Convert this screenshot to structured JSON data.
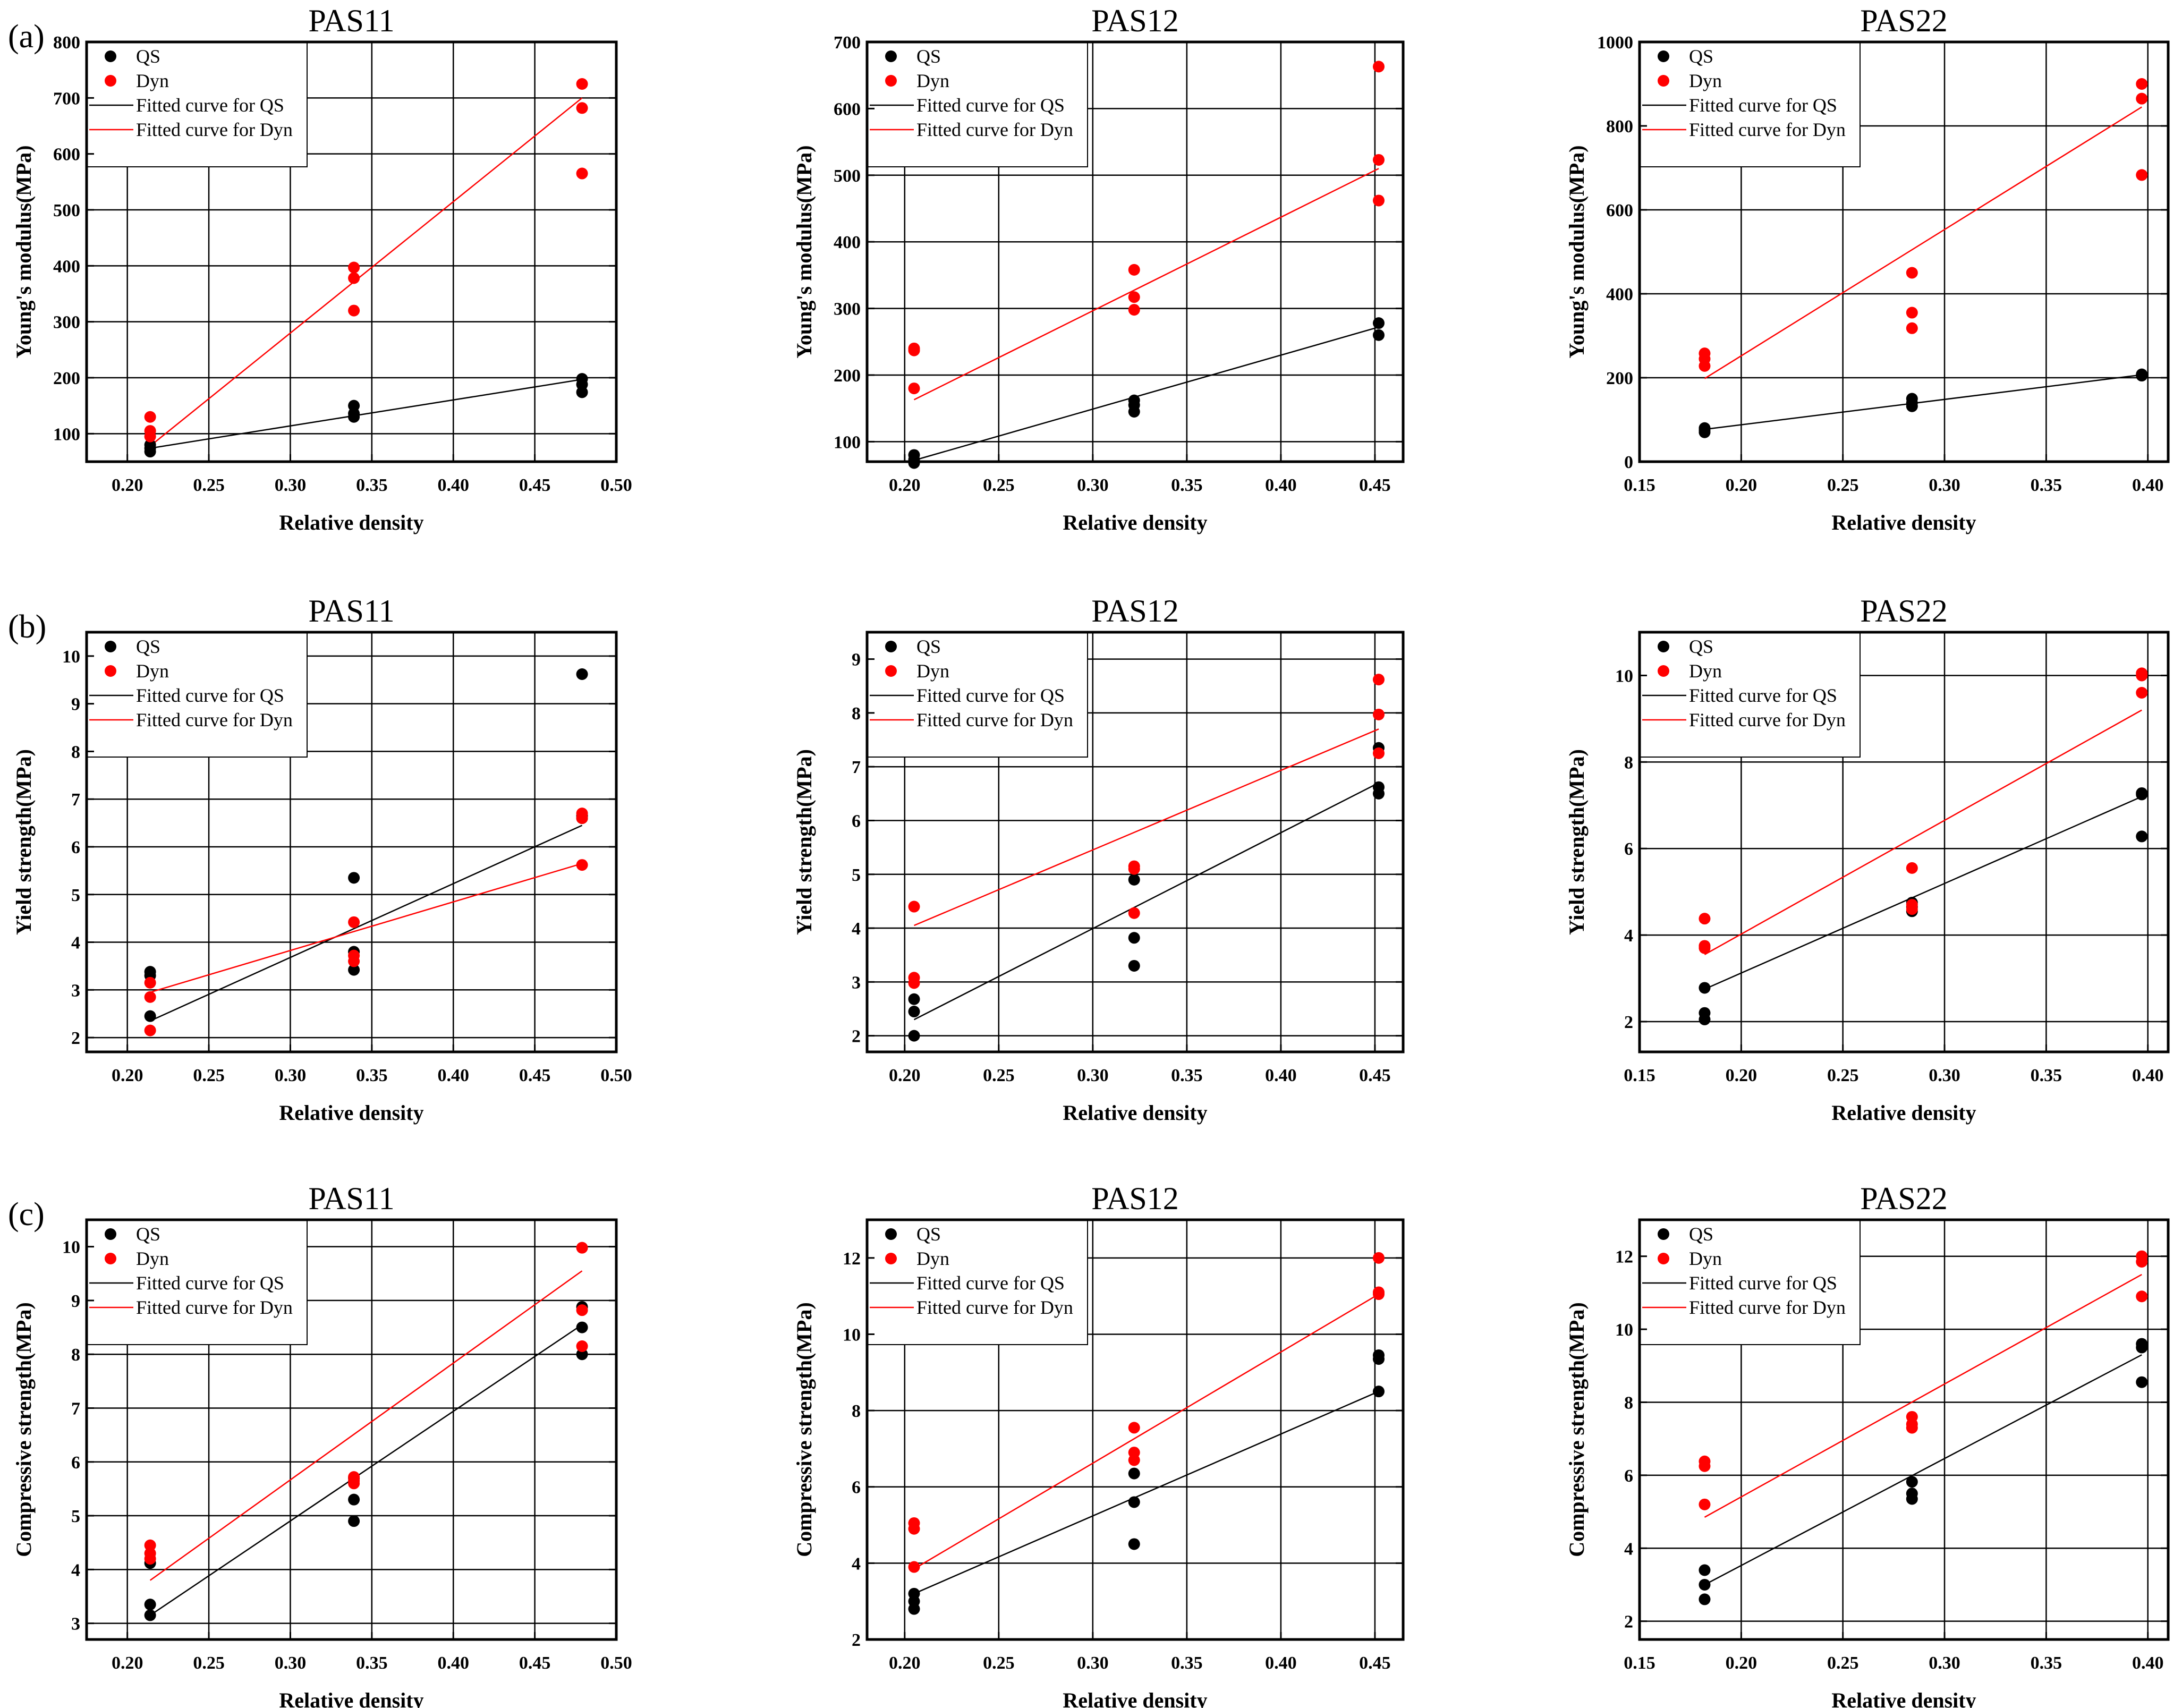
{
  "colors": {
    "qs": "#000000",
    "dyn": "#ff0000"
  },
  "legend": [
    "QS",
    "Dyn",
    "Fitted curve for QS",
    "Fitted curve for Dyn"
  ],
  "row_labels": [
    "(a)",
    "(b)",
    "(c)"
  ],
  "chart_data": [
    {
      "type": "scatter",
      "row": 0,
      "title": "PAS11",
      "xlabel": "Relative density",
      "ylabel": "Young's modulus(MPa)",
      "xlim": [
        0.175,
        0.5
      ],
      "ylim": [
        50,
        800
      ],
      "xticks": [
        0.2,
        0.25,
        0.3,
        0.35,
        0.4,
        0.45,
        0.5
      ],
      "yticks": [
        100,
        200,
        300,
        400,
        500,
        600,
        700,
        800
      ],
      "xdec": 2,
      "series": [
        {
          "name": "QS",
          "x": [
            0.214,
            0.214,
            0.214,
            0.339,
            0.339,
            0.339,
            0.479,
            0.479,
            0.479
          ],
          "y": [
            68,
            74,
            80,
            130,
            136,
            150,
            174,
            188,
            198
          ]
        },
        {
          "name": "Dyn",
          "x": [
            0.214,
            0.214,
            0.214,
            0.339,
            0.339,
            0.339,
            0.479,
            0.479,
            0.479
          ],
          "y": [
            95,
            105,
            130,
            320,
            378,
            397,
            565,
            682,
            725
          ]
        }
      ],
      "fits": [
        {
          "name": "Fitted curve for QS",
          "x": [
            0.214,
            0.479
          ],
          "y": [
            74,
            197
          ]
        },
        {
          "name": "Fitted curve for Dyn",
          "x": [
            0.214,
            0.479
          ],
          "y": [
            78,
            700
          ]
        }
      ]
    },
    {
      "type": "scatter",
      "row": 0,
      "title": "PAS12",
      "xlabel": "Relative density",
      "ylabel": "Young's modulus(MPa)",
      "xlim": [
        0.18,
        0.465
      ],
      "ylim": [
        70,
        700
      ],
      "xticks": [
        0.2,
        0.25,
        0.3,
        0.35,
        0.4,
        0.45
      ],
      "yticks": [
        100,
        200,
        300,
        400,
        500,
        600,
        700
      ],
      "xdec": 2,
      "series": [
        {
          "name": "QS",
          "x": [
            0.205,
            0.205,
            0.205,
            0.322,
            0.322,
            0.322,
            0.452,
            0.452
          ],
          "y": [
            68,
            73,
            80,
            145,
            155,
            162,
            260,
            278
          ]
        },
        {
          "name": "Dyn",
          "x": [
            0.205,
            0.205,
            0.205,
            0.322,
            0.322,
            0.322,
            0.452,
            0.452,
            0.452
          ],
          "y": [
            180,
            237,
            240,
            298,
            317,
            358,
            462,
            523,
            663
          ]
        }
      ],
      "fits": [
        {
          "name": "Fitted curve for QS",
          "x": [
            0.205,
            0.452
          ],
          "y": [
            72,
            272
          ]
        },
        {
          "name": "Fitted curve for Dyn",
          "x": [
            0.205,
            0.452
          ],
          "y": [
            163,
            510
          ]
        }
      ]
    },
    {
      "type": "scatter",
      "row": 0,
      "title": "PAS22",
      "xlabel": "Relative density",
      "ylabel": "Young's modulus(MPa)",
      "xlim": [
        0.15,
        0.41
      ],
      "ylim": [
        0,
        1000
      ],
      "xticks": [
        0.15,
        0.2,
        0.25,
        0.3,
        0.35,
        0.4
      ],
      "yticks": [
        0,
        200,
        400,
        600,
        800,
        1000
      ],
      "xdec": 2,
      "series": [
        {
          "name": "QS",
          "x": [
            0.182,
            0.182,
            0.182,
            0.284,
            0.284,
            0.284,
            0.397,
            0.397
          ],
          "y": [
            70,
            75,
            80,
            132,
            140,
            150,
            205,
            208
          ]
        },
        {
          "name": "Dyn",
          "x": [
            0.182,
            0.182,
            0.182,
            0.284,
            0.284,
            0.284,
            0.397,
            0.397,
            0.397
          ],
          "y": [
            228,
            245,
            258,
            318,
            355,
            450,
            683,
            865,
            900
          ]
        }
      ],
      "fits": [
        {
          "name": "Fitted curve for QS",
          "x": [
            0.182,
            0.397
          ],
          "y": [
            77,
            207
          ]
        },
        {
          "name": "Fitted curve for Dyn",
          "x": [
            0.182,
            0.397
          ],
          "y": [
            198,
            845
          ]
        }
      ]
    },
    {
      "type": "scatter",
      "row": 1,
      "title": "PAS11",
      "xlabel": "Relative density",
      "ylabel": "Yield strength(MPa)",
      "xlim": [
        0.175,
        0.5
      ],
      "ylim": [
        1.7,
        10.5
      ],
      "xticks": [
        0.2,
        0.25,
        0.3,
        0.35,
        0.4,
        0.45,
        0.5
      ],
      "yticks": [
        2,
        3,
        4,
        5,
        6,
        7,
        8,
        9,
        10
      ],
      "xdec": 2,
      "series": [
        {
          "name": "QS",
          "x": [
            0.214,
            0.214,
            0.214,
            0.339,
            0.339,
            0.339,
            0.479,
            0.479,
            0.479
          ],
          "y": [
            2.45,
            3.3,
            3.38,
            3.42,
            3.8,
            5.35,
            6.6,
            6.65,
            9.62
          ]
        },
        {
          "name": "Dyn",
          "x": [
            0.214,
            0.214,
            0.214,
            0.339,
            0.339,
            0.339,
            0.479,
            0.479,
            0.479
          ],
          "y": [
            2.15,
            2.85,
            3.15,
            3.6,
            3.72,
            4.42,
            5.62,
            6.6,
            6.7
          ]
        }
      ],
      "fits": [
        {
          "name": "Fitted curve for QS",
          "x": [
            0.214,
            0.479
          ],
          "y": [
            2.35,
            6.45
          ]
        },
        {
          "name": "Fitted curve for Dyn",
          "x": [
            0.214,
            0.479
          ],
          "y": [
            2.95,
            5.65
          ]
        }
      ]
    },
    {
      "type": "scatter",
      "row": 1,
      "title": "PAS12",
      "xlabel": "Relative density",
      "ylabel": "Yield strength(MPa)",
      "xlim": [
        0.18,
        0.465
      ],
      "ylim": [
        1.7,
        9.5
      ],
      "xticks": [
        0.2,
        0.25,
        0.3,
        0.35,
        0.4,
        0.45
      ],
      "yticks": [
        2,
        3,
        4,
        5,
        6,
        7,
        8,
        9
      ],
      "xdec": 2,
      "series": [
        {
          "name": "QS",
          "x": [
            0.205,
            0.205,
            0.205,
            0.322,
            0.322,
            0.322,
            0.452,
            0.452,
            0.452
          ],
          "y": [
            2.0,
            2.45,
            2.68,
            3.3,
            3.82,
            4.9,
            6.5,
            6.62,
            7.35
          ]
        },
        {
          "name": "Dyn",
          "x": [
            0.205,
            0.205,
            0.205,
            0.322,
            0.322,
            0.322,
            0.452,
            0.452,
            0.452
          ],
          "y": [
            2.98,
            3.08,
            4.4,
            4.28,
            5.1,
            5.15,
            7.25,
            7.97,
            8.62
          ]
        }
      ],
      "fits": [
        {
          "name": "Fitted curve for QS",
          "x": [
            0.205,
            0.452
          ],
          "y": [
            2.3,
            6.7
          ]
        },
        {
          "name": "Fitted curve for Dyn",
          "x": [
            0.205,
            0.452
          ],
          "y": [
            4.05,
            7.7
          ]
        }
      ]
    },
    {
      "type": "scatter",
      "row": 1,
      "title": "PAS22",
      "xlabel": "Relative density",
      "ylabel": "Yield strength(MPa)",
      "xlim": [
        0.15,
        0.41
      ],
      "ylim": [
        1.3,
        11
      ],
      "xticks": [
        0.15,
        0.2,
        0.25,
        0.3,
        0.35,
        0.4
      ],
      "yticks": [
        2,
        4,
        6,
        8,
        10
      ],
      "xdec": 2,
      "series": [
        {
          "name": "QS",
          "x": [
            0.182,
            0.182,
            0.182,
            0.284,
            0.284,
            0.284,
            0.397,
            0.397,
            0.397
          ],
          "y": [
            2.05,
            2.2,
            2.78,
            4.55,
            4.65,
            4.75,
            6.28,
            7.25,
            7.28
          ]
        },
        {
          "name": "Dyn",
          "x": [
            0.182,
            0.182,
            0.182,
            0.284,
            0.284,
            0.284,
            0.397,
            0.397,
            0.397
          ],
          "y": [
            3.7,
            3.75,
            4.38,
            4.6,
            4.7,
            5.55,
            9.6,
            10.0,
            10.05
          ]
        }
      ],
      "fits": [
        {
          "name": "Fitted curve for QS",
          "x": [
            0.182,
            0.397
          ],
          "y": [
            2.75,
            7.2
          ]
        },
        {
          "name": "Fitted curve for Dyn",
          "x": [
            0.182,
            0.397
          ],
          "y": [
            3.55,
            9.2
          ]
        }
      ]
    },
    {
      "type": "scatter",
      "row": 2,
      "title": "PAS11",
      "xlabel": "Relative density",
      "ylabel": "Compressive strength(MPa)",
      "xlim": [
        0.175,
        0.5
      ],
      "ylim": [
        2.7,
        10.5
      ],
      "xticks": [
        0.2,
        0.25,
        0.3,
        0.35,
        0.4,
        0.45,
        0.5
      ],
      "yticks": [
        3,
        4,
        5,
        6,
        7,
        8,
        9,
        10
      ],
      "xdec": 2,
      "series": [
        {
          "name": "QS",
          "x": [
            0.214,
            0.214,
            0.214,
            0.339,
            0.339,
            0.339,
            0.479,
            0.479,
            0.479
          ],
          "y": [
            3.15,
            3.35,
            4.12,
            4.9,
            5.3,
            5.7,
            8.0,
            8.5,
            8.88
          ]
        },
        {
          "name": "Dyn",
          "x": [
            0.214,
            0.214,
            0.214,
            0.339,
            0.339,
            0.339,
            0.479,
            0.479,
            0.479
          ],
          "y": [
            4.2,
            4.3,
            4.45,
            5.6,
            5.65,
            5.72,
            8.15,
            8.82,
            9.98
          ]
        }
      ],
      "fits": [
        {
          "name": "Fitted curve for QS",
          "x": [
            0.214,
            0.479
          ],
          "y": [
            3.15,
            8.55
          ]
        },
        {
          "name": "Fitted curve for Dyn",
          "x": [
            0.214,
            0.479
          ],
          "y": [
            3.8,
            9.55
          ]
        }
      ]
    },
    {
      "type": "scatter",
      "row": 2,
      "title": "PAS12",
      "xlabel": "Relative density",
      "ylabel": "Compressive strength(MPa)",
      "xlim": [
        0.18,
        0.465
      ],
      "ylim": [
        2,
        13
      ],
      "xticks": [
        0.2,
        0.25,
        0.3,
        0.35,
        0.4,
        0.45
      ],
      "yticks": [
        2,
        4,
        6,
        8,
        10,
        12
      ],
      "xdec": 2,
      "series": [
        {
          "name": "QS",
          "x": [
            0.205,
            0.205,
            0.205,
            0.322,
            0.322,
            0.322,
            0.452,
            0.452,
            0.452
          ],
          "y": [
            2.8,
            3.0,
            3.2,
            4.5,
            5.6,
            6.35,
            8.5,
            9.35,
            9.45
          ]
        },
        {
          "name": "Dyn",
          "x": [
            0.205,
            0.205,
            0.205,
            0.322,
            0.322,
            0.322,
            0.452,
            0.452,
            0.452
          ],
          "y": [
            3.9,
            4.9,
            5.05,
            6.7,
            6.9,
            7.55,
            11.05,
            11.1,
            12.0
          ]
        }
      ],
      "fits": [
        {
          "name": "Fitted curve for QS",
          "x": [
            0.205,
            0.452
          ],
          "y": [
            3.2,
            8.5
          ]
        },
        {
          "name": "Fitted curve for Dyn",
          "x": [
            0.205,
            0.452
          ],
          "y": [
            3.85,
            11.05
          ]
        }
      ]
    },
    {
      "type": "scatter",
      "row": 2,
      "title": "PAS22",
      "xlabel": "Relative density",
      "ylabel": "Compressive strength(MPa)",
      "xlim": [
        0.15,
        0.41
      ],
      "ylim": [
        1.5,
        13
      ],
      "xticks": [
        0.15,
        0.2,
        0.25,
        0.3,
        0.35,
        0.4
      ],
      "yticks": [
        2,
        4,
        6,
        8,
        10,
        12
      ],
      "xdec": 2,
      "series": [
        {
          "name": "QS",
          "x": [
            0.182,
            0.182,
            0.182,
            0.284,
            0.284,
            0.284,
            0.397,
            0.397,
            0.397
          ],
          "y": [
            2.6,
            3.0,
            3.4,
            5.35,
            5.5,
            5.82,
            8.55,
            9.5,
            9.6
          ]
        },
        {
          "name": "Dyn",
          "x": [
            0.182,
            0.182,
            0.182,
            0.284,
            0.284,
            0.284,
            0.397,
            0.397,
            0.397
          ],
          "y": [
            5.2,
            6.25,
            6.38,
            7.3,
            7.4,
            7.6,
            10.9,
            11.85,
            12.0
          ]
        }
      ],
      "fits": [
        {
          "name": "Fitted curve for QS",
          "x": [
            0.182,
            0.397
          ],
          "y": [
            3.0,
            9.3
          ]
        },
        {
          "name": "Fitted curve for Dyn",
          "x": [
            0.182,
            0.397
          ],
          "y": [
            4.85,
            11.5
          ]
        }
      ]
    }
  ]
}
